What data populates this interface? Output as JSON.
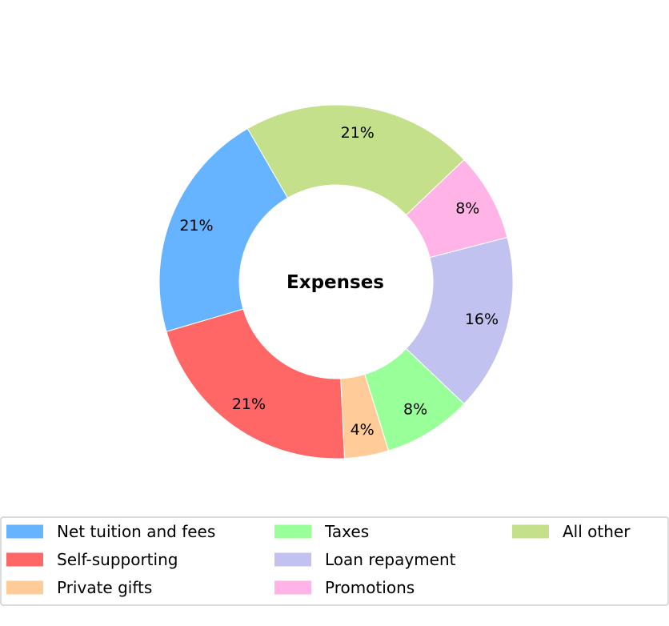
{
  "chart_data": {
    "type": "pie",
    "donut": true,
    "center_label": "Expenses",
    "start_angle_deg": 120,
    "direction": "counterclockwise",
    "slices": [
      {
        "label": "Net tuition and fees",
        "value": 21,
        "value_label": "21%",
        "color": "#66b3ff"
      },
      {
        "label": "Self-supporting",
        "value": 21,
        "value_label": "21%",
        "color": "#ff6666"
      },
      {
        "label": "Private gifts",
        "value": 4,
        "value_label": "4%",
        "color": "#ffcc99"
      },
      {
        "label": "Taxes",
        "value": 8,
        "value_label": "8%",
        "color": "#99ff99"
      },
      {
        "label": "Loan repayment",
        "value": 16,
        "value_label": "16%",
        "color": "#c2c2f0"
      },
      {
        "label": "Promotions",
        "value": 8,
        "value_label": "8%",
        "color": "#ffb3e6"
      },
      {
        "label": "All other",
        "value": 21,
        "value_label": "21%",
        "color": "#c4e08a"
      }
    ],
    "legend": {
      "placement": "bottom",
      "columns": 3
    }
  }
}
